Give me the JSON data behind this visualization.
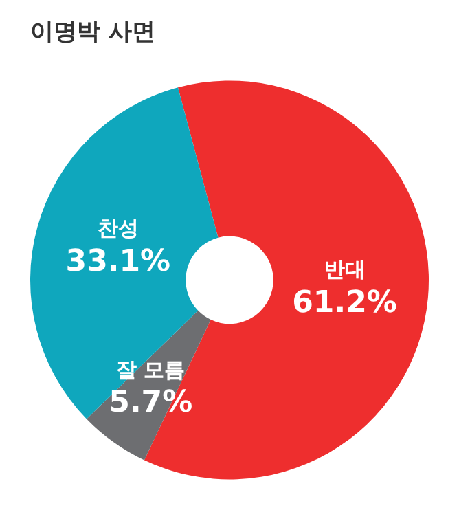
{
  "chart_data": {
    "type": "donut",
    "title": "이명박 사면",
    "categories": [
      "반대",
      "잘 모름",
      "찬성"
    ],
    "values": [
      61.2,
      5.7,
      33.1
    ],
    "colors": [
      "#ee2e2e",
      "#6d6e71",
      "#0fa7bd"
    ],
    "value_labels": [
      "61.2%",
      "5.7%",
      "33.1%"
    ],
    "legend": false
  }
}
